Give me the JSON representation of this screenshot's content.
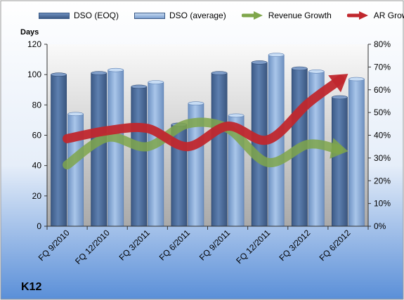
{
  "colors": {
    "dso_eoq": "#4f6f9c",
    "dso_avg": "#8fb2dd",
    "revenue_growth": "#7fa64b",
    "ar_growth": "#c0272d",
    "background_top": "#ffffff",
    "background_bottom": "#5a8fd8"
  },
  "company": "K12",
  "chart_data": {
    "type": "bar",
    "categories": [
      "FQ 9/2010",
      "FQ 12/2010",
      "FQ 3/2011",
      "FQ 6/2011",
      "FQ 9/2011",
      "FQ 12/2011",
      "FQ 3/2012",
      "FQ 6/2012"
    ],
    "series": [
      {
        "name": "DSO (EOQ)",
        "type": "bar",
        "axis": "left",
        "values": [
          100,
          101,
          92,
          67,
          101,
          108,
          104,
          85
        ]
      },
      {
        "name": "DSO (average)",
        "type": "bar",
        "axis": "left",
        "values": [
          74,
          103,
          95,
          81,
          73,
          113,
          102,
          97
        ]
      },
      {
        "name": "Revenue Growth",
        "type": "line",
        "axis": "right",
        "values": [
          0.27,
          0.39,
          0.35,
          0.45,
          0.43,
          0.28,
          0.36,
          0.33
        ]
      },
      {
        "name": "AR Growth",
        "type": "line",
        "axis": "right",
        "values": [
          0.385,
          0.42,
          0.43,
          0.35,
          0.44,
          0.38,
          0.54,
          0.67
        ]
      }
    ],
    "ylabel": "Days",
    "ylim": [
      0,
      120
    ],
    "yticks": [
      "0",
      "20",
      "40",
      "60",
      "80",
      "100",
      "120"
    ],
    "y2lim": [
      0,
      0.8
    ],
    "y2ticks": [
      "0%",
      "10%",
      "20%",
      "30%",
      "40%",
      "50%",
      "60%",
      "70%",
      "80%"
    ],
    "grid": false,
    "legend": "top"
  }
}
